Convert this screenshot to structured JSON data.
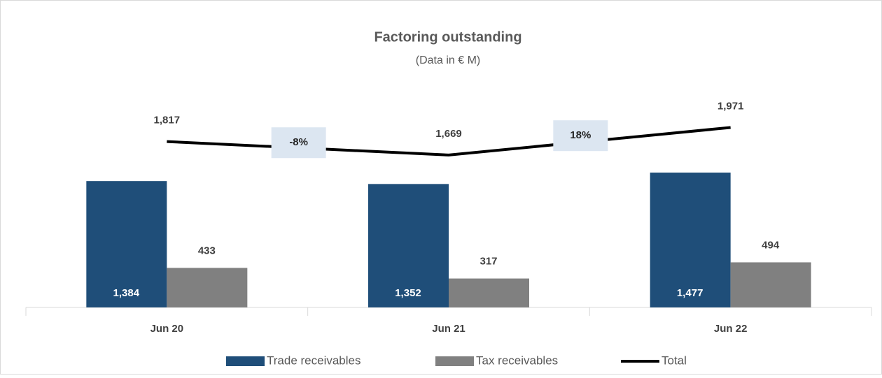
{
  "chart_data": {
    "type": "bar",
    "title": "Factoring outstanding",
    "subtitle": "(Data in € M)",
    "categories": [
      "Jun 20",
      "Jun 21",
      "Jun 22"
    ],
    "ylim": [
      0,
      3000
    ],
    "series": [
      {
        "name": "Trade receivables",
        "type": "bar",
        "color": "#1f4e79",
        "values": [
          1384,
          1352,
          1477
        ],
        "value_labels": [
          "1,384",
          "1,352",
          "1,477"
        ]
      },
      {
        "name": "Tax receivables",
        "type": "bar",
        "color": "#808080",
        "values": [
          433,
          317,
          494
        ]
      },
      {
        "name": "Total",
        "type": "line",
        "color": "#000000",
        "values": [
          1817,
          1669,
          1971
        ],
        "value_labels": [
          "1,817",
          "1,669",
          "1,971"
        ]
      }
    ],
    "annotations": [
      "-8%",
      "18%"
    ],
    "annotation_color": "#dce6f1",
    "legend": "bottom"
  }
}
